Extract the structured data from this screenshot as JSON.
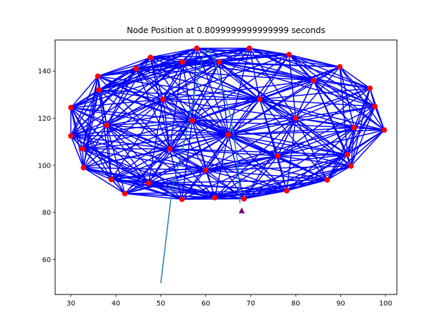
{
  "chart_data": {
    "type": "scatter",
    "title": "Node Position at 0.8099999999999999 seconds",
    "xlabel": "",
    "ylabel": "",
    "xlim": [
      26.5,
      102.5
    ],
    "ylim": [
      45.2,
      153.2
    ],
    "grid": false,
    "x_ticks": [
      30,
      40,
      50,
      60,
      70,
      80,
      90,
      100
    ],
    "y_ticks": [
      60,
      80,
      100,
      120,
      140
    ],
    "colors": {
      "node": "#ff0000",
      "edge": "#0000ff",
      "trajectory": "#1f77b4",
      "target": "#800080"
    },
    "nodes": [
      {
        "x": 30.0,
        "y": 124.5
      },
      {
        "x": 30.0,
        "y": 112.5
      },
      {
        "x": 32.6,
        "y": 107.0
      },
      {
        "x": 32.8,
        "y": 99.0
      },
      {
        "x": 36.0,
        "y": 137.8
      },
      {
        "x": 36.2,
        "y": 132.0
      },
      {
        "x": 38.0,
        "y": 117.0
      },
      {
        "x": 39.0,
        "y": 94.0
      },
      {
        "x": 42.0,
        "y": 88.0
      },
      {
        "x": 44.5,
        "y": 141.0
      },
      {
        "x": 47.3,
        "y": 92.5
      },
      {
        "x": 47.7,
        "y": 145.8
      },
      {
        "x": 50.5,
        "y": 128.0
      },
      {
        "x": 52.0,
        "y": 107.0
      },
      {
        "x": 54.7,
        "y": 85.6
      },
      {
        "x": 54.8,
        "y": 143.8
      },
      {
        "x": 57.0,
        "y": 119.0
      },
      {
        "x": 58.0,
        "y": 149.7
      },
      {
        "x": 60.0,
        "y": 98.0
      },
      {
        "x": 62.0,
        "y": 86.3
      },
      {
        "x": 63.0,
        "y": 143.8
      },
      {
        "x": 65.0,
        "y": 113.0
      },
      {
        "x": 68.5,
        "y": 85.8
      },
      {
        "x": 69.7,
        "y": 149.7
      },
      {
        "x": 72.0,
        "y": 128.0
      },
      {
        "x": 76.0,
        "y": 104.0
      },
      {
        "x": 78.0,
        "y": 89.2
      },
      {
        "x": 78.5,
        "y": 147.0
      },
      {
        "x": 80.0,
        "y": 120.0
      },
      {
        "x": 84.0,
        "y": 136.0
      },
      {
        "x": 87.0,
        "y": 93.8
      },
      {
        "x": 89.8,
        "y": 141.8
      },
      {
        "x": 91.5,
        "y": 104.5
      },
      {
        "x": 92.3,
        "y": 99.7
      },
      {
        "x": 93.0,
        "y": 116.0
      },
      {
        "x": 96.5,
        "y": 132.7
      },
      {
        "x": 97.6,
        "y": 125.0
      },
      {
        "x": 99.7,
        "y": 115.0
      }
    ],
    "trajectory": [
      {
        "x": 50.0,
        "y": 50.0
      },
      {
        "x": 52.5,
        "y": 90.0
      },
      {
        "x": 55.5,
        "y": 112.0
      },
      {
        "x": 57.5,
        "y": 131.0
      },
      {
        "x": 59.5,
        "y": 147.0
      },
      {
        "x": 60.5,
        "y": 149.5
      },
      {
        "x": 62.0,
        "y": 144.0
      },
      {
        "x": 65.5,
        "y": 121.0
      },
      {
        "x": 67.2,
        "y": 100.0
      },
      {
        "x": 67.6,
        "y": 84.0
      }
    ],
    "target": {
      "x": 68.0,
      "y": 80.8
    }
  }
}
